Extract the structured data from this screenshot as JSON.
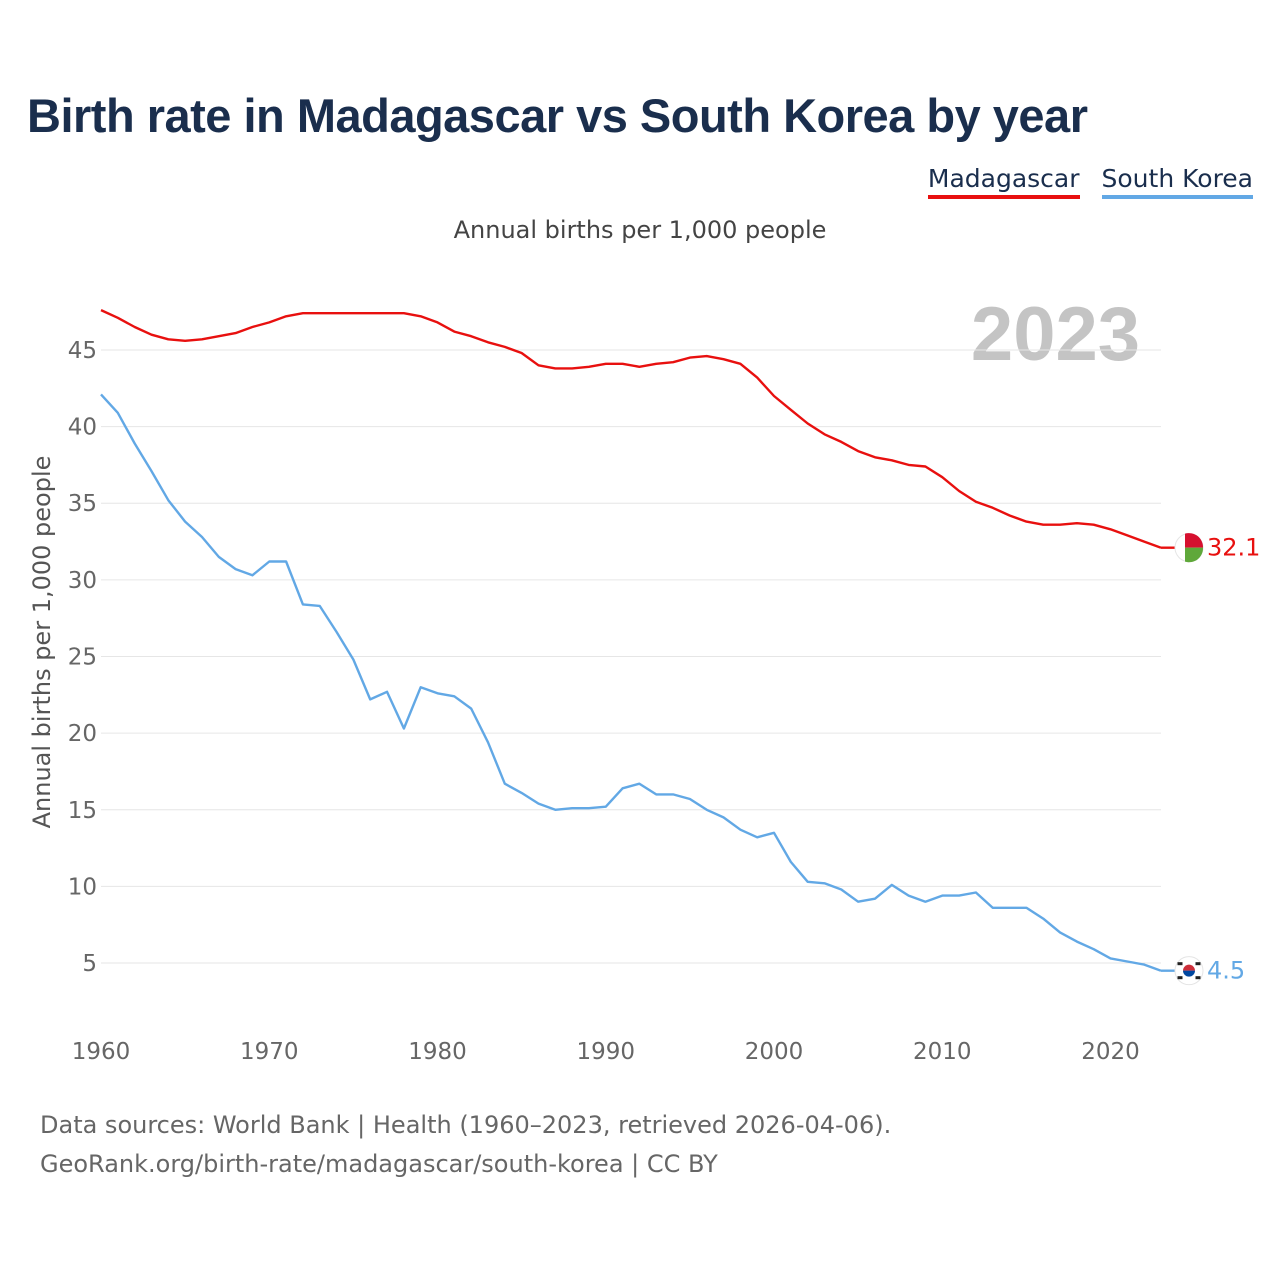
{
  "title": "Birth rate in Madagascar vs South Korea by year",
  "subtitle": "Annual births per 1,000 people",
  "legend": [
    {
      "label": "Madagascar",
      "color": "#e8100f"
    },
    {
      "label": "South Korea",
      "color": "#62a8e5"
    }
  ],
  "year_watermark": "2023",
  "sources": {
    "line1": "Data sources: World Bank | Health (1960–2023, retrieved 2026-04-06).",
    "line2": "GeoRank.org/birth-rate/madagascar/south-korea | CC BY"
  },
  "chart_data": {
    "type": "line",
    "ylabel": "Annual births per 1,000 people",
    "xlabel": "",
    "xlim": [
      1960,
      2023
    ],
    "ylim": [
      2,
      48
    ],
    "xticks": [
      1960,
      1970,
      1980,
      1990,
      2000,
      2010,
      2020
    ],
    "yticks": [
      5,
      10,
      15,
      20,
      25,
      30,
      35,
      40,
      45
    ],
    "grid": true,
    "x": [
      1960,
      1961,
      1962,
      1963,
      1964,
      1965,
      1966,
      1967,
      1968,
      1969,
      1970,
      1971,
      1972,
      1973,
      1974,
      1975,
      1976,
      1977,
      1978,
      1979,
      1980,
      1981,
      1982,
      1983,
      1984,
      1985,
      1986,
      1987,
      1988,
      1989,
      1990,
      1991,
      1992,
      1993,
      1994,
      1995,
      1996,
      1997,
      1998,
      1999,
      2000,
      2001,
      2002,
      2003,
      2004,
      2005,
      2006,
      2007,
      2008,
      2009,
      2010,
      2011,
      2012,
      2013,
      2014,
      2015,
      2016,
      2017,
      2018,
      2019,
      2020,
      2021,
      2022,
      2023
    ],
    "series": [
      {
        "name": "Madagascar",
        "color": "#e8100f",
        "end_label": "32.1",
        "flag": "madagascar-flag-icon",
        "values": [
          47.6,
          47.1,
          46.5,
          46.0,
          45.7,
          45.6,
          45.7,
          45.9,
          46.1,
          46.5,
          46.8,
          47.2,
          47.4,
          47.4,
          47.4,
          47.4,
          47.4,
          47.4,
          47.4,
          47.2,
          46.8,
          46.2,
          45.9,
          45.5,
          45.2,
          44.8,
          44.0,
          43.8,
          43.8,
          43.9,
          44.1,
          44.1,
          43.9,
          44.1,
          44.2,
          44.5,
          44.6,
          44.4,
          44.1,
          43.2,
          42.0,
          41.1,
          40.2,
          39.5,
          39.0,
          38.4,
          38.0,
          37.8,
          37.5,
          37.4,
          36.7,
          35.8,
          35.1,
          34.7,
          34.2,
          33.8,
          33.6,
          33.6,
          33.7,
          33.6,
          33.3,
          32.9,
          32.5,
          32.1
        ]
      },
      {
        "name": "South Korea",
        "color": "#62a8e5",
        "end_label": "4.5",
        "flag": "south-korea-flag-icon",
        "values": [
          42.1,
          40.9,
          38.9,
          37.1,
          35.2,
          33.8,
          32.8,
          31.5,
          30.7,
          30.3,
          31.2,
          31.2,
          28.4,
          28.3,
          26.6,
          24.8,
          22.2,
          22.7,
          20.3,
          23.0,
          22.6,
          22.4,
          21.6,
          19.4,
          16.7,
          16.1,
          15.4,
          15.0,
          15.1,
          15.1,
          15.2,
          16.4,
          16.7,
          16.0,
          16.0,
          15.7,
          15.0,
          14.5,
          13.7,
          13.2,
          13.5,
          11.6,
          10.3,
          10.2,
          9.8,
          9.0,
          9.2,
          10.1,
          9.4,
          9.0,
          9.4,
          9.4,
          9.6,
          8.6,
          8.6,
          8.6,
          7.9,
          7.0,
          6.4,
          5.9,
          5.3,
          5.1,
          4.9,
          4.5
        ]
      }
    ]
  }
}
